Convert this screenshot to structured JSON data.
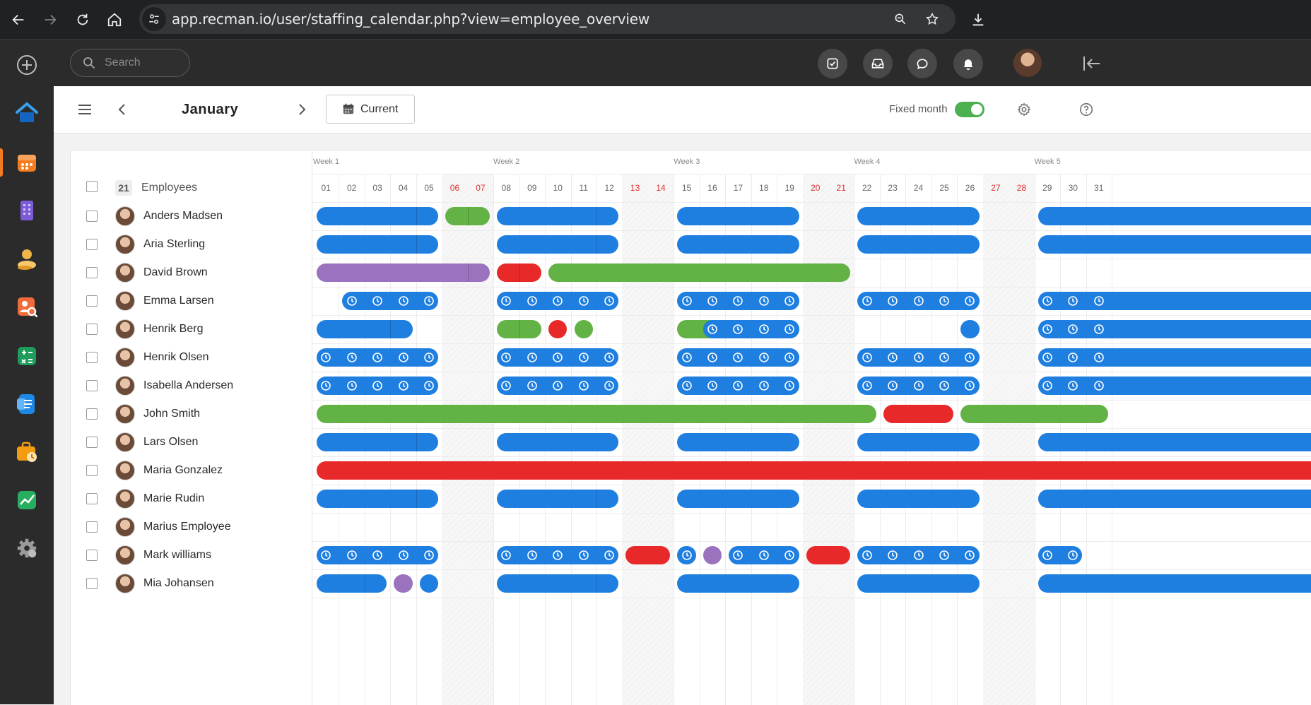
{
  "browser": {
    "url": "app.recman.io/user/staffing_calendar.php?view=employee_overview"
  },
  "header": {
    "search_placeholder": "Search"
  },
  "toolbar": {
    "month": "January",
    "current_label": "Current",
    "fixed_month_label": "Fixed month",
    "fixed_month_on": true
  },
  "calendar": {
    "employee_count": "21",
    "employees_heading": "Employees",
    "weeks": [
      "Week 1",
      "Week 2",
      "Week 3",
      "Week 4",
      "Week 5"
    ],
    "days": [
      "01",
      "02",
      "03",
      "04",
      "05",
      "06",
      "07",
      "08",
      "09",
      "10",
      "11",
      "12",
      "13",
      "14",
      "15",
      "16",
      "17",
      "18",
      "19",
      "20",
      "21",
      "22",
      "23",
      "24",
      "25",
      "26",
      "27",
      "28",
      "29",
      "30",
      "31"
    ],
    "weekend_days": [
      "06",
      "07",
      "13",
      "14",
      "20",
      "21",
      "27",
      "28"
    ],
    "employees": [
      {
        "name": "Anders Madsen"
      },
      {
        "name": "Aria Sterling"
      },
      {
        "name": "David Brown"
      },
      {
        "name": "Emma Larsen"
      },
      {
        "name": "Henrik Berg"
      },
      {
        "name": "Henrik Olsen"
      },
      {
        "name": "Isabella Andersen"
      },
      {
        "name": "John Smith"
      },
      {
        "name": "Lars Olsen"
      },
      {
        "name": "Maria Gonzalez"
      },
      {
        "name": "Marie Rudin"
      },
      {
        "name": "Marius Employee"
      },
      {
        "name": "Mark williams"
      },
      {
        "name": "Mia Johansen"
      }
    ],
    "colors": {
      "blue": "#1e7fe0",
      "green": "#62b245",
      "red": "#e8292a",
      "purple": "#9b72bd",
      "weekend_label": "#e02f2f"
    },
    "bookings": [
      {
        "row": 0,
        "from": 1,
        "to": 5,
        "color": "blue",
        "splits": [
          5
        ]
      },
      {
        "row": 0,
        "from": 6,
        "to": 7,
        "color": "green",
        "splits": [
          7
        ]
      },
      {
        "row": 0,
        "from": 8,
        "to": 12,
        "color": "blue",
        "splits": [
          12
        ]
      },
      {
        "row": 0,
        "from": 15,
        "to": 19,
        "color": "blue"
      },
      {
        "row": 0,
        "from": 22,
        "to": 26,
        "color": "blue"
      },
      {
        "row": 0,
        "from": 29,
        "to": 31,
        "color": "blue",
        "open_end": true
      },
      {
        "row": 1,
        "from": 1,
        "to": 5,
        "color": "blue",
        "splits": [
          5
        ]
      },
      {
        "row": 1,
        "from": 8,
        "to": 12,
        "color": "blue",
        "splits": [
          12
        ]
      },
      {
        "row": 1,
        "from": 15,
        "to": 19,
        "color": "blue"
      },
      {
        "row": 1,
        "from": 22,
        "to": 26,
        "color": "blue"
      },
      {
        "row": 1,
        "from": 29,
        "to": 31,
        "color": "blue",
        "open_end": true
      },
      {
        "row": 2,
        "from": 1,
        "to": 7,
        "color": "purple",
        "splits": [
          7
        ]
      },
      {
        "row": 2,
        "from": 8,
        "to": 9,
        "color": "red",
        "splits": [
          9
        ]
      },
      {
        "row": 2,
        "from": 10,
        "to": 21,
        "color": "green"
      },
      {
        "row": 3,
        "from": 2,
        "to": 5,
        "color": "blue",
        "icons": "clock"
      },
      {
        "row": 3,
        "from": 8,
        "to": 12,
        "color": "blue",
        "icons": "clock"
      },
      {
        "row": 3,
        "from": 15,
        "to": 19,
        "color": "blue",
        "icons": "clock"
      },
      {
        "row": 3,
        "from": 22,
        "to": 26,
        "color": "blue",
        "icons": "clock"
      },
      {
        "row": 3,
        "from": 29,
        "to": 31,
        "color": "blue",
        "icons": "clock",
        "open_end": true
      },
      {
        "row": 4,
        "from": 1,
        "to": 4,
        "color": "blue",
        "splits": [
          4
        ]
      },
      {
        "row": 4,
        "from": 8,
        "to": 9,
        "color": "green",
        "splits": [
          9
        ]
      },
      {
        "row": 4,
        "from": 10,
        "to": 10,
        "color": "red"
      },
      {
        "row": 4,
        "from": 11,
        "to": 11,
        "color": "green"
      },
      {
        "row": 4,
        "from": 15,
        "to": 19,
        "color": "green"
      },
      {
        "row": 4,
        "from": 16,
        "to": 19,
        "color": "blue",
        "icons": "clock"
      },
      {
        "row": 4,
        "from": 26,
        "to": 26,
        "color": "blue"
      },
      {
        "row": 4,
        "from": 29,
        "to": 31,
        "color": "blue",
        "icons": "clock",
        "open_end": true
      },
      {
        "row": 5,
        "from": 1,
        "to": 5,
        "color": "blue",
        "icons": "clock"
      },
      {
        "row": 5,
        "from": 8,
        "to": 12,
        "color": "blue",
        "icons": "clock"
      },
      {
        "row": 5,
        "from": 15,
        "to": 19,
        "color": "blue",
        "icons": "clock"
      },
      {
        "row": 5,
        "from": 22,
        "to": 26,
        "color": "blue",
        "icons": "clock"
      },
      {
        "row": 5,
        "from": 29,
        "to": 31,
        "color": "blue",
        "icons": "clock",
        "open_end": true
      },
      {
        "row": 6,
        "from": 1,
        "to": 5,
        "color": "blue",
        "icons": "clock"
      },
      {
        "row": 6,
        "from": 8,
        "to": 12,
        "color": "blue",
        "icons": "clock"
      },
      {
        "row": 6,
        "from": 15,
        "to": 19,
        "color": "blue",
        "icons": "clock"
      },
      {
        "row": 6,
        "from": 22,
        "to": 26,
        "color": "blue",
        "icons": "clock"
      },
      {
        "row": 6,
        "from": 29,
        "to": 31,
        "color": "blue",
        "icons": "clock",
        "open_end": true
      },
      {
        "row": 7,
        "from": 1,
        "to": 22,
        "color": "green"
      },
      {
        "row": 7,
        "from": 23,
        "to": 25,
        "color": "red"
      },
      {
        "row": 7,
        "from": 26,
        "to": 31,
        "color": "green"
      },
      {
        "row": 8,
        "from": 1,
        "to": 5,
        "color": "blue",
        "splits": [
          5
        ]
      },
      {
        "row": 8,
        "from": 8,
        "to": 12,
        "color": "blue"
      },
      {
        "row": 8,
        "from": 15,
        "to": 19,
        "color": "blue"
      },
      {
        "row": 8,
        "from": 22,
        "to": 26,
        "color": "blue"
      },
      {
        "row": 8,
        "from": 29,
        "to": 31,
        "color": "blue",
        "open_end": true
      },
      {
        "row": 9,
        "from": 1,
        "to": 31,
        "color": "red",
        "open_end": true
      },
      {
        "row": 10,
        "from": 1,
        "to": 5,
        "color": "blue",
        "splits": [
          5
        ]
      },
      {
        "row": 10,
        "from": 8,
        "to": 12,
        "color": "blue",
        "splits": [
          12
        ]
      },
      {
        "row": 10,
        "from": 15,
        "to": 19,
        "color": "blue"
      },
      {
        "row": 10,
        "from": 22,
        "to": 26,
        "color": "blue"
      },
      {
        "row": 10,
        "from": 29,
        "to": 31,
        "color": "blue",
        "open_end": true
      },
      {
        "row": 12,
        "from": 1,
        "to": 5,
        "color": "blue",
        "icons": "clock"
      },
      {
        "row": 12,
        "from": 8,
        "to": 12,
        "color": "blue",
        "icons": "clock"
      },
      {
        "row": 12,
        "from": 13,
        "to": 14,
        "color": "red"
      },
      {
        "row": 12,
        "from": 15,
        "to": 15,
        "color": "blue",
        "icons": "clock"
      },
      {
        "row": 12,
        "from": 16,
        "to": 16,
        "color": "purple"
      },
      {
        "row": 12,
        "from": 17,
        "to": 19,
        "color": "blue",
        "icons": "clock"
      },
      {
        "row": 12,
        "from": 20,
        "to": 21,
        "color": "red"
      },
      {
        "row": 12,
        "from": 22,
        "to": 26,
        "color": "blue",
        "icons": "clock"
      },
      {
        "row": 12,
        "from": 29,
        "to": 30,
        "color": "blue",
        "icons": "clock"
      },
      {
        "row": 13,
        "from": 1,
        "to": 3,
        "color": "blue",
        "splits": [
          3
        ]
      },
      {
        "row": 13,
        "from": 4,
        "to": 4,
        "color": "purple"
      },
      {
        "row": 13,
        "from": 5,
        "to": 5,
        "color": "blue"
      },
      {
        "row": 13,
        "from": 8,
        "to": 12,
        "color": "blue",
        "splits": [
          12
        ]
      },
      {
        "row": 13,
        "from": 15,
        "to": 19,
        "color": "blue"
      },
      {
        "row": 13,
        "from": 22,
        "to": 26,
        "color": "blue"
      },
      {
        "row": 13,
        "from": 29,
        "to": 31,
        "color": "blue",
        "open_end": true
      }
    ]
  }
}
